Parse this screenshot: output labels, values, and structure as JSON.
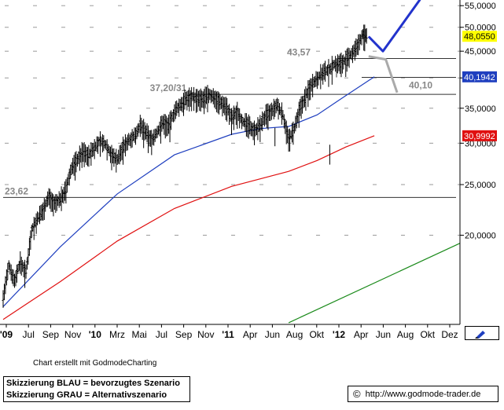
{
  "chart_data": {
    "type": "line",
    "ylim": [
      13.5,
      56
    ],
    "yscale": "log",
    "y_ticks": [
      {
        "value": 20,
        "label": "20,0000"
      },
      {
        "value": 25,
        "label": "25,0000"
      },
      {
        "value": 30,
        "label": "30,0000"
      },
      {
        "value": 35,
        "label": "35,0000"
      },
      {
        "value": 40,
        "label": "40,0000"
      },
      {
        "value": 45,
        "label": "45,0000"
      },
      {
        "value": 50,
        "label": "50,0000"
      },
      {
        "value": 55,
        "label": "55,0000"
      }
    ],
    "x_ticks": [
      "'09",
      "Jul",
      "Sep",
      "Nov",
      "'10",
      "Mrz",
      "Mai",
      "Jul",
      "Sep",
      "Nov",
      "'11",
      "Apr",
      "Jun",
      "Aug",
      "Okt",
      "'12",
      "Apr",
      "Jun",
      "Aug",
      "Okt",
      "Dez"
    ],
    "bold_x_ticks": [
      "'09",
      "'10",
      "'11",
      "'12"
    ],
    "horizontal_levels": [
      {
        "value": 23.62,
        "label": "23,62"
      },
      {
        "value": 37.2,
        "label": "37,20/31"
      },
      {
        "value": 43.57,
        "label": "43,57"
      },
      {
        "value": 40.1,
        "label": "40,10"
      }
    ],
    "value_tags": [
      {
        "value": 48.055,
        "label": "48,0550",
        "bg": "#ffff00",
        "fg": "#000000"
      },
      {
        "value": 40.1942,
        "label": "40,1942",
        "bg": "#1f3fbf",
        "fg": "#ffffff"
      },
      {
        "value": 30.9992,
        "label": "30,9992",
        "bg": "#e01010",
        "fg": "#ffffff"
      }
    ],
    "price_path": [
      [
        0,
        15.2
      ],
      [
        1,
        17.5
      ],
      [
        2,
        16.4
      ],
      [
        3,
        17.8
      ],
      [
        4,
        17.0
      ],
      [
        5,
        20.5
      ],
      [
        6,
        21.5
      ],
      [
        7,
        22.4
      ],
      [
        8,
        23.8
      ],
      [
        9,
        23.0
      ],
      [
        10,
        23.5
      ],
      [
        11,
        24.5
      ],
      [
        12,
        27.0
      ],
      [
        13,
        28.0
      ],
      [
        14,
        29.0
      ],
      [
        15,
        28.5
      ],
      [
        16,
        29.5
      ],
      [
        17,
        30.3
      ],
      [
        18,
        29.8
      ],
      [
        19,
        28.5
      ],
      [
        20,
        28.0
      ],
      [
        21,
        29.5
      ],
      [
        22,
        30.5
      ],
      [
        23,
        31.0
      ],
      [
        24,
        32.5
      ],
      [
        25,
        31.5
      ],
      [
        26,
        30.5
      ],
      [
        27,
        31.5
      ],
      [
        28,
        33.0
      ],
      [
        29,
        32.5
      ],
      [
        30,
        34.5
      ],
      [
        31,
        35.5
      ],
      [
        32,
        36.5
      ],
      [
        33,
        37.0
      ],
      [
        34,
        36.5
      ],
      [
        35,
        36.5
      ],
      [
        36,
        37.2
      ],
      [
        37,
        36.8
      ],
      [
        38,
        36.0
      ],
      [
        39,
        35.5
      ],
      [
        40,
        33.5
      ],
      [
        41,
        34.5
      ],
      [
        42,
        33.0
      ],
      [
        43,
        32.5
      ],
      [
        44,
        31.8
      ],
      [
        45,
        32.5
      ],
      [
        46,
        34.0
      ],
      [
        47,
        34.5
      ],
      [
        48,
        35.5
      ],
      [
        49,
        34.0
      ],
      [
        50,
        30.5
      ],
      [
        51,
        32.0
      ],
      [
        52,
        35.0
      ],
      [
        53,
        37.0
      ],
      [
        54,
        39.0
      ],
      [
        55,
        40.0
      ],
      [
        56,
        41.0
      ],
      [
        57,
        41.5
      ],
      [
        58,
        42.5
      ],
      [
        59,
        42.8
      ],
      [
        60,
        43.2
      ],
      [
        61,
        44.5
      ],
      [
        62,
        46.0
      ],
      [
        63,
        48.5
      ],
      [
        63.8,
        48.0
      ]
    ],
    "series": [
      {
        "color": "#1f3fbf",
        "points": [
          [
            0,
            14.6
          ],
          [
            10,
            19.0
          ],
          [
            20,
            24.0
          ],
          [
            30,
            28.5
          ],
          [
            40,
            31.2
          ],
          [
            45,
            32.0
          ],
          [
            50,
            32.3
          ],
          [
            55,
            34.0
          ],
          [
            60,
            37.0
          ],
          [
            65,
            40.2
          ]
        ]
      },
      {
        "color": "#e01010",
        "points": [
          [
            0,
            13.8
          ],
          [
            10,
            16.3
          ],
          [
            20,
            19.5
          ],
          [
            30,
            22.5
          ],
          [
            40,
            24.8
          ],
          [
            50,
            26.5
          ],
          [
            55,
            27.8
          ],
          [
            60,
            29.5
          ],
          [
            65,
            31.0
          ]
        ]
      },
      {
        "color": "#1a8a1a",
        "points": [
          [
            50,
            13.6
          ],
          [
            80,
            19.3
          ]
        ]
      }
    ],
    "scenarios": [
      {
        "color": "#2233cc",
        "label": "Skizzierung BLAU = bevorzugtes Szenario",
        "points": [
          [
            64,
            48.0
          ],
          [
            66.5,
            45.0
          ],
          [
            73,
            56.5
          ]
        ]
      },
      {
        "color": "#aaaaaa",
        "label": "Skizzierung GRAU = Alternativszenario",
        "points": [
          [
            64,
            44.0
          ],
          [
            67,
            43.4
          ],
          [
            69,
            37.5
          ]
        ]
      }
    ],
    "gray_level_line": {
      "value": 43.57
    }
  },
  "footer": {
    "credit": "Chart erstellt mit GodmodeCharting",
    "legend_blue": "Skizzierung BLAU = bevorzugtes Szenario",
    "legend_gray": "Skizzierung GRAU = Alternativszenario",
    "source_symbol": "©",
    "source_url": "http://www.godmode-trader.de"
  },
  "colors": {
    "grid": "#a0a0a0",
    "axis": "#000000",
    "level": "#333333"
  },
  "icons": {
    "corner": "pencil-icon"
  }
}
